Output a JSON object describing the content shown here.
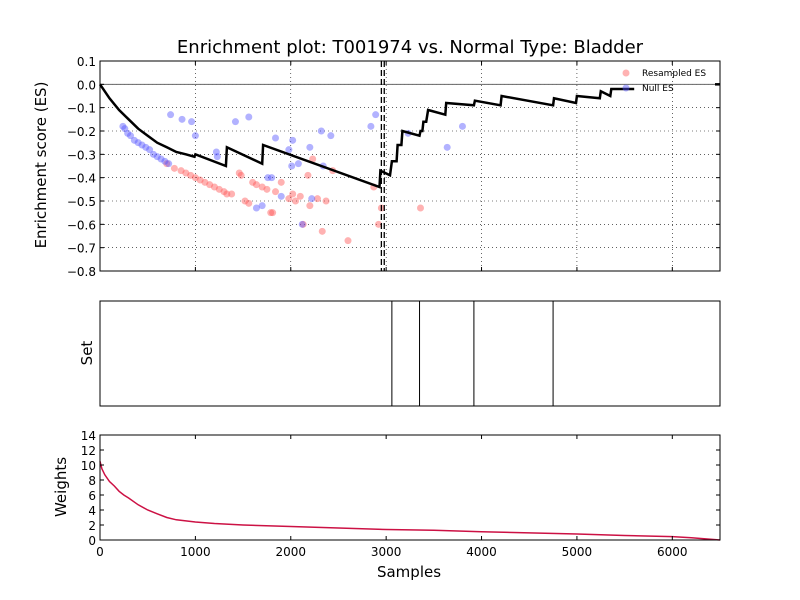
{
  "chart_data": [
    {
      "type": "scatter",
      "panel": "enrichment",
      "title": "Enrichment plot: T001974 vs. Normal Type: Bladder",
      "xlabel": "",
      "ylabel": "Enrichment score (ES)",
      "xlim": [
        0,
        6500
      ],
      "ylim": [
        -0.8,
        0.1
      ],
      "yticks": [
        0.1,
        0.0,
        -0.1,
        -0.2,
        -0.3,
        -0.4,
        -0.5,
        -0.6,
        -0.7,
        -0.8
      ],
      "ytick_labels": [
        "0.1",
        "0.0",
        "−0.1",
        "−0.2",
        "−0.3",
        "−0.4",
        "−0.5",
        "−0.6",
        "−0.7",
        "−0.8"
      ],
      "xticks": [
        1000,
        2000,
        3000,
        4000,
        5000,
        6000
      ],
      "grid": true,
      "legend_position": "top-right",
      "reference_line_y": 0.0,
      "vertical_dashed_x": [
        2950,
        2980
      ],
      "series": [
        {
          "name": "Resampled ES",
          "kind": "scatter",
          "color": "#ff5555",
          "points": [
            [
              700,
              -0.34
            ],
            [
              780,
              -0.36
            ],
            [
              850,
              -0.37
            ],
            [
              900,
              -0.38
            ],
            [
              950,
              -0.39
            ],
            [
              1000,
              -0.4
            ],
            [
              1050,
              -0.41
            ],
            [
              1100,
              -0.42
            ],
            [
              1150,
              -0.43
            ],
            [
              1200,
              -0.44
            ],
            [
              1250,
              -0.45
            ],
            [
              1300,
              -0.46
            ],
            [
              1330,
              -0.47
            ],
            [
              1380,
              -0.47
            ],
            [
              1460,
              -0.38
            ],
            [
              1480,
              -0.39
            ],
            [
              1520,
              -0.5
            ],
            [
              1560,
              -0.51
            ],
            [
              1600,
              -0.42
            ],
            [
              1640,
              -0.43
            ],
            [
              1700,
              -0.44
            ],
            [
              1750,
              -0.45
            ],
            [
              1790,
              -0.55
            ],
            [
              1810,
              -0.55
            ],
            [
              1840,
              -0.46
            ],
            [
              1900,
              -0.42
            ],
            [
              1980,
              -0.49
            ],
            [
              2020,
              -0.47
            ],
            [
              2050,
              -0.5
            ],
            [
              2100,
              -0.48
            ],
            [
              2130,
              -0.6
            ],
            [
              2180,
              -0.39
            ],
            [
              2200,
              -0.52
            ],
            [
              2230,
              -0.32
            ],
            [
              2280,
              -0.49
            ],
            [
              2330,
              -0.63
            ],
            [
              2370,
              -0.5
            ],
            [
              2440,
              -0.37
            ],
            [
              2600,
              -0.67
            ],
            [
              2870,
              -0.44
            ],
            [
              2920,
              -0.6
            ],
            [
              2950,
              -0.53
            ],
            [
              3360,
              -0.53
            ]
          ]
        },
        {
          "name": "Null ES",
          "kind": "scatter",
          "color": "#5555ff",
          "points": [
            [
              240,
              -0.18
            ],
            [
              260,
              -0.19
            ],
            [
              290,
              -0.21
            ],
            [
              320,
              -0.22
            ],
            [
              360,
              -0.24
            ],
            [
              400,
              -0.25
            ],
            [
              440,
              -0.26
            ],
            [
              480,
              -0.27
            ],
            [
              520,
              -0.28
            ],
            [
              560,
              -0.3
            ],
            [
              600,
              -0.31
            ],
            [
              640,
              -0.32
            ],
            [
              680,
              -0.33
            ],
            [
              720,
              -0.34
            ],
            [
              740,
              -0.13
            ],
            [
              860,
              -0.15
            ],
            [
              960,
              -0.16
            ],
            [
              1000,
              -0.22
            ],
            [
              1220,
              -0.29
            ],
            [
              1230,
              -0.31
            ],
            [
              1420,
              -0.16
            ],
            [
              1560,
              -0.14
            ],
            [
              1760,
              -0.4
            ],
            [
              1800,
              -0.4
            ],
            [
              1840,
              -0.23
            ],
            [
              1900,
              -0.48
            ],
            [
              1980,
              -0.28
            ],
            [
              2010,
              -0.35
            ],
            [
              2020,
              -0.24
            ],
            [
              2080,
              -0.34
            ],
            [
              2120,
              -0.6
            ],
            [
              2200,
              -0.27
            ],
            [
              2220,
              -0.49
            ],
            [
              2320,
              -0.2
            ],
            [
              2340,
              -0.35
            ],
            [
              2420,
              -0.22
            ],
            [
              2840,
              -0.18
            ],
            [
              2890,
              -0.13
            ],
            [
              3230,
              -0.21
            ],
            [
              3640,
              -0.27
            ],
            [
              3800,
              -0.18
            ],
            [
              1700,
              -0.52
            ],
            [
              1640,
              -0.53
            ]
          ]
        },
        {
          "name": "ES",
          "kind": "line",
          "color": "#000000",
          "points": [
            [
              0,
              0.0
            ],
            [
              100,
              -0.06
            ],
            [
              200,
              -0.11
            ],
            [
              300,
              -0.15
            ],
            [
              400,
              -0.19
            ],
            [
              500,
              -0.22
            ],
            [
              600,
              -0.25
            ],
            [
              700,
              -0.27
            ],
            [
              800,
              -0.29
            ],
            [
              900,
              -0.3
            ],
            [
              990,
              -0.31
            ],
            [
              1000,
              -0.3
            ],
            [
              1320,
              -0.35
            ],
            [
              1330,
              -0.27
            ],
            [
              1700,
              -0.34
            ],
            [
              1710,
              -0.26
            ],
            [
              2930,
              -0.44
            ],
            [
              2940,
              -0.37
            ],
            [
              3040,
              -0.39
            ],
            [
              3060,
              -0.33
            ],
            [
              3110,
              -0.33
            ],
            [
              3120,
              -0.26
            ],
            [
              3160,
              -0.26
            ],
            [
              3170,
              -0.2
            ],
            [
              3350,
              -0.22
            ],
            [
              3360,
              -0.2
            ],
            [
              3380,
              -0.2
            ],
            [
              3390,
              -0.16
            ],
            [
              3420,
              -0.16
            ],
            [
              3440,
              -0.11
            ],
            [
              3620,
              -0.13
            ],
            [
              3630,
              -0.08
            ],
            [
              3920,
              -0.09
            ],
            [
              3930,
              -0.07
            ],
            [
              4200,
              -0.09
            ],
            [
              4210,
              -0.05
            ],
            [
              4750,
              -0.09
            ],
            [
              4760,
              -0.06
            ],
            [
              4990,
              -0.08
            ],
            [
              5000,
              -0.05
            ],
            [
              5240,
              -0.06
            ],
            [
              5250,
              -0.03
            ],
            [
              5350,
              -0.05
            ],
            [
              5360,
              -0.02
            ],
            [
              5600,
              -0.02
            ]
          ]
        }
      ]
    },
    {
      "type": "line",
      "panel": "set",
      "xlabel": "",
      "ylabel": "Set",
      "xlim": [
        0,
        6500
      ],
      "set_positions": [
        3060,
        3350,
        3920,
        4750
      ]
    },
    {
      "type": "line",
      "panel": "weights",
      "xlabel": "Samples",
      "ylabel": "Weights",
      "xlim": [
        0,
        6500
      ],
      "ylim": [
        0,
        14
      ],
      "yticks": [
        0,
        2,
        4,
        6,
        8,
        10,
        12,
        14
      ],
      "xticks": [
        0,
        1000,
        2000,
        3000,
        4000,
        5000,
        6000
      ],
      "series": [
        {
          "name": "",
          "color": "#cc1144",
          "x": [
            0,
            20,
            50,
            100,
            150,
            200,
            250,
            300,
            400,
            500,
            600,
            700,
            800,
            1000,
            1200,
            1500,
            2000,
            2500,
            3000,
            3500,
            4000,
            4500,
            5000,
            5500,
            6000,
            6200,
            6400,
            6500
          ],
          "values": [
            10.5,
            9.5,
            8.7,
            7.8,
            7.2,
            6.5,
            6.0,
            5.6,
            4.7,
            4.0,
            3.5,
            3.0,
            2.7,
            2.4,
            2.2,
            2.0,
            1.8,
            1.6,
            1.4,
            1.3,
            1.1,
            0.95,
            0.8,
            0.6,
            0.45,
            0.3,
            0.1,
            0.0
          ]
        }
      ]
    }
  ]
}
